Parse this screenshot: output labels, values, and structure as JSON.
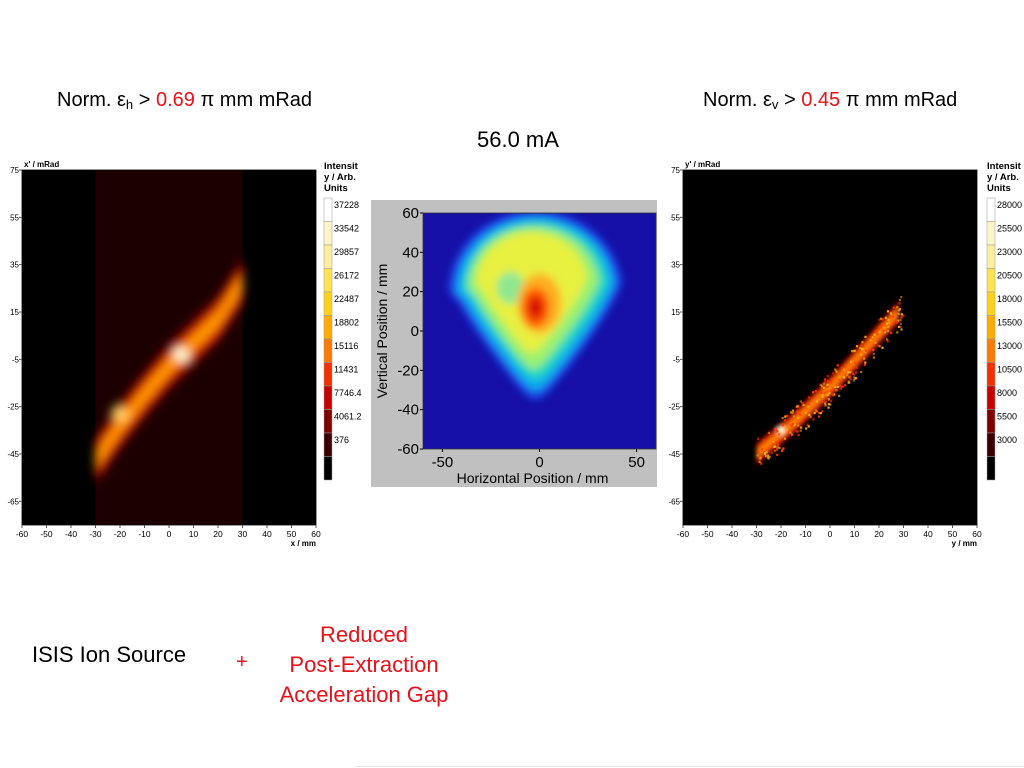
{
  "emittance_h": {
    "label": "Norm. ε",
    "sub": "h",
    "gt": " > ",
    "value": "0.69",
    "unit": " π mm mRad"
  },
  "emittance_v": {
    "label": "Norm. ε",
    "sub": "v",
    "gt": " > ",
    "value": "0.45",
    "unit": " π mm mRad"
  },
  "beam_current": "56.0 mA",
  "caption": {
    "source": "ISIS Ion Source",
    "plus": "+",
    "reduced_lines": [
      "Reduced",
      "Post-Extraction",
      "Acceleration Gap"
    ]
  },
  "colors": {
    "accent_red": "#e8111a"
  },
  "chart_data": [
    {
      "type": "heatmap",
      "title": "",
      "xlabel": "x / mm",
      "ylabel": "x' / mRad",
      "xlim": [
        -60,
        60
      ],
      "ylim": [
        -75,
        75
      ],
      "xticks": [
        -60,
        -50,
        -40,
        -30,
        -20,
        -10,
        0,
        10,
        20,
        30,
        40,
        50,
        60
      ],
      "yticks": [
        75,
        55,
        35,
        15,
        -5,
        -25,
        -45,
        -65
      ],
      "ytick_labels": [
        "75",
        "55",
        "35",
        "15",
        "-5",
        "-25",
        "-45",
        "-65"
      ],
      "colorbar_title": "Intensity / Arb. Units",
      "colorbar_title_lines": [
        "Intensit",
        "y / Arb.",
        "Units"
      ],
      "colorbar_labels": [
        "37228",
        "33542",
        "29857",
        "26172",
        "22487",
        "18802",
        "15116",
        "11431",
        "7746.4",
        "4061.2",
        "376"
      ],
      "measured_range_x": [
        -30,
        30
      ],
      "distribution": {
        "centerline": [
          [
            -30,
            -48
          ],
          [
            -20,
            -33
          ],
          [
            -10,
            -20
          ],
          [
            0,
            -8
          ],
          [
            10,
            2
          ],
          [
            20,
            12
          ],
          [
            30,
            28
          ]
        ],
        "peaks": [
          [
            5,
            -3
          ],
          [
            -20,
            -28
          ]
        ]
      }
    },
    {
      "type": "heatmap",
      "title": "",
      "xlabel": "Horizontal Position / mm",
      "ylabel": "Vertical Position / mm",
      "xlim": [
        -60,
        60
      ],
      "ylim": [
        -60,
        60
      ],
      "xticks": [
        -50,
        0,
        50
      ],
      "yticks": [
        60,
        40,
        20,
        0,
        -20,
        -40,
        -60
      ],
      "shape": "teardrop beam profile, hot core near (-2, 12)"
    },
    {
      "type": "heatmap",
      "title": "",
      "xlabel": "y / mm",
      "ylabel": "y' / mRad",
      "xlim": [
        -60,
        60
      ],
      "ylim": [
        -75,
        75
      ],
      "xticks": [
        -60,
        -50,
        -40,
        -30,
        -20,
        -10,
        0,
        10,
        20,
        30,
        40,
        50,
        60
      ],
      "yticks": [
        75,
        55,
        35,
        15,
        -5,
        -25,
        -45,
        -65
      ],
      "ytick_labels": [
        "75",
        "55",
        "35",
        "15",
        "-5",
        "-25",
        "-45",
        "-65"
      ],
      "colorbar_title": "Intensity / Arb. Units",
      "colorbar_title_lines": [
        "Intensit",
        "y / Arb.",
        "Units"
      ],
      "colorbar_labels": [
        "28000",
        "25500",
        "23000",
        "20500",
        "18000",
        "15500",
        "13000",
        "10500",
        "8000",
        "5500",
        "3000"
      ],
      "distribution": {
        "centerline": [
          [
            -30,
            -45
          ],
          [
            -15,
            -32
          ],
          [
            0,
            -17
          ],
          [
            15,
            0
          ],
          [
            28,
            15
          ]
        ],
        "peaks": [
          [
            -20,
            -35
          ]
        ]
      }
    }
  ]
}
